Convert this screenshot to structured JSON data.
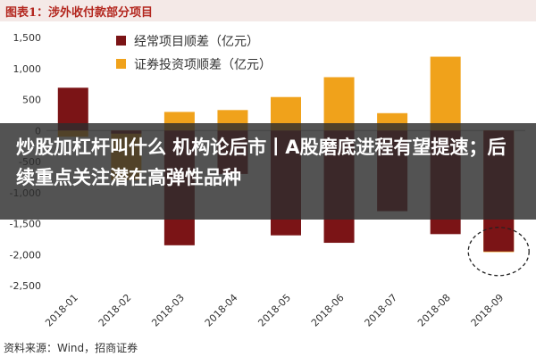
{
  "header": {
    "title": "图表1：涉外收付款部分项目"
  },
  "banner": {
    "headline": "炒股加杠杆叫什么 机构论后市丨A股磨底进程有望提速；后续重点关注潜在高弹性品种"
  },
  "source": {
    "text": "资料来源：Wind，招商证券"
  },
  "colors": {
    "current": "#7b1416",
    "securities": "#f0a21b",
    "header_title": "#b3261e"
  },
  "chart_data": {
    "type": "bar",
    "categories": [
      "2018-01",
      "2018-02",
      "2018-03",
      "2018-04",
      "2018-05",
      "2018-06",
      "2018-07",
      "2018-08",
      "2018-09"
    ],
    "series": [
      {
        "name": "经常项目顺差（亿元）",
        "values": [
          690,
          -50,
          -1850,
          -700,
          -1690,
          -1810,
          -1300,
          -1670,
          -1950
        ]
      },
      {
        "name": "证券投资项顺差（亿元）",
        "values": [
          -100,
          -800,
          300,
          330,
          540,
          860,
          280,
          1190,
          -1960
        ]
      }
    ],
    "ylim": [
      -2500,
      1500
    ],
    "yticks": [
      1500,
      1000,
      500,
      0,
      -500,
      -1000,
      -1500,
      -2000,
      -2500
    ],
    "ytick_labels": [
      "1,500",
      "1,000",
      "500",
      "0",
      "-500",
      "-1,000",
      "-1,500",
      "-2,000",
      "-2,500"
    ],
    "legend_position": "top-center",
    "highlight": {
      "category": "2018-09",
      "shape": "dashed circle"
    }
  }
}
